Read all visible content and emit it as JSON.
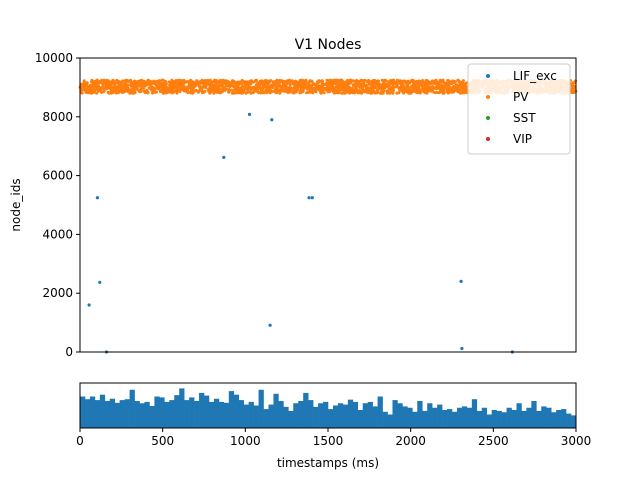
{
  "chart_data": [
    {
      "type": "scatter",
      "title": "V1 Nodes",
      "ylabel": "node_ids",
      "xlim": [
        0,
        3000
      ],
      "ylim": [
        0,
        10000
      ],
      "yticks": [
        0,
        2000,
        4000,
        6000,
        8000,
        10000
      ],
      "ytick_labels": [
        "0",
        "2000",
        "4000",
        "6000",
        "8000",
        "10000"
      ],
      "grid": false,
      "legend_position": "top-right",
      "series": [
        {
          "name": "LIF_exc",
          "color": "#1f77b4",
          "points": [
            [
              55,
              1600
            ],
            [
              105,
              5250
            ],
            [
              120,
              2370
            ],
            [
              160,
              0
            ],
            [
              870,
              6620
            ],
            [
              1025,
              8080
            ],
            [
              1150,
              910
            ],
            [
              1160,
              7900
            ],
            [
              1385,
              5250
            ],
            [
              1405,
              5250
            ],
            [
              2305,
              2400
            ],
            [
              2310,
              120
            ],
            [
              2615,
              0
            ]
          ]
        },
        {
          "name": "PV",
          "color": "#ff7f0e",
          "band": {
            "x_range": [
              0,
              3000
            ],
            "y_range": [
              8800,
              9250
            ]
          }
        },
        {
          "name": "SST",
          "color": "#2ca02c",
          "points": []
        },
        {
          "name": "VIP",
          "color": "#d62728",
          "points": []
        }
      ]
    },
    {
      "type": "bar",
      "xlabel": "timestamps (ms)",
      "xlim": [
        0,
        3000
      ],
      "xticks": [
        0,
        500,
        1000,
        1500,
        2000,
        2500,
        3000
      ],
      "xtick_labels": [
        "0",
        "500",
        "1000",
        "1500",
        "2000",
        "2500",
        "3000"
      ],
      "color": "#1f77b4",
      "bin_width_ms": 30,
      "values": [
        0.7,
        0.64,
        0.7,
        0.62,
        0.74,
        0.6,
        0.65,
        0.56,
        0.62,
        0.64,
        0.85,
        0.6,
        0.55,
        0.58,
        0.49,
        0.7,
        0.68,
        0.58,
        0.62,
        0.73,
        0.88,
        0.62,
        0.68,
        0.6,
        0.78,
        0.72,
        0.58,
        0.65,
        0.58,
        0.56,
        0.82,
        0.74,
        0.62,
        0.52,
        0.58,
        0.5,
        0.85,
        0.42,
        0.52,
        0.76,
        0.6,
        0.47,
        0.38,
        0.55,
        0.6,
        0.78,
        0.62,
        0.47,
        0.55,
        0.58,
        0.42,
        0.5,
        0.55,
        0.52,
        0.63,
        0.58,
        0.4,
        0.55,
        0.58,
        0.48,
        0.7,
        0.36,
        0.3,
        0.62,
        0.55,
        0.48,
        0.45,
        0.36,
        0.6,
        0.38,
        0.55,
        0.45,
        0.52,
        0.4,
        0.42,
        0.36,
        0.45,
        0.48,
        0.45,
        0.64,
        0.38,
        0.45,
        0.3,
        0.4,
        0.38,
        0.35,
        0.45,
        0.4,
        0.55,
        0.38,
        0.45,
        0.6,
        0.38,
        0.48,
        0.45,
        0.35,
        0.4,
        0.42,
        0.32,
        0.28
      ],
      "ymax": 1.0
    }
  ]
}
